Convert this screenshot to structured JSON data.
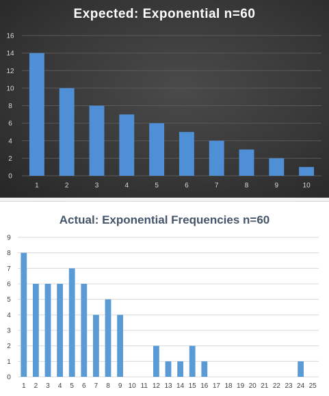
{
  "chart_data": [
    {
      "type": "bar",
      "title": "Expected:  Exponential  n=60",
      "categories": [
        "1",
        "2",
        "3",
        "4",
        "5",
        "6",
        "7",
        "8",
        "9",
        "10"
      ],
      "values": [
        14,
        10,
        8,
        7,
        6,
        5,
        4,
        3,
        2,
        1
      ],
      "ylim": [
        0,
        16
      ],
      "yticks": [
        0,
        2,
        4,
        6,
        8,
        10,
        12,
        14,
        16
      ],
      "grid": true,
      "xlabel": "",
      "ylabel": "",
      "colors": {
        "bar": "#4f8fd6",
        "background": "#383838",
        "grid": "#5a5a5a",
        "text": "#d9d9d9",
        "title": "#ffffff"
      }
    },
    {
      "type": "bar",
      "title": "Actual: Exponential  Frequencies n=60",
      "categories": [
        "1",
        "2",
        "3",
        "4",
        "5",
        "6",
        "7",
        "8",
        "9",
        "10",
        "11",
        "12",
        "13",
        "14",
        "15",
        "16",
        "17",
        "18",
        "19",
        "20",
        "21",
        "22",
        "23",
        "24",
        "25"
      ],
      "values": [
        8,
        6,
        6,
        6,
        7,
        6,
        4,
        5,
        4,
        0,
        0,
        2,
        1,
        1,
        2,
        1,
        0,
        0,
        0,
        0,
        0,
        0,
        0,
        1,
        0
      ],
      "ylim": [
        0,
        9
      ],
      "yticks": [
        0,
        1,
        2,
        3,
        4,
        5,
        6,
        7,
        8,
        9
      ],
      "grid": true,
      "xlabel": "",
      "ylabel": "",
      "colors": {
        "bar": "#5b9bd5",
        "background": "#ffffff",
        "grid": "#d9d9d9",
        "text": "#404040",
        "title": "#44546a"
      }
    }
  ]
}
